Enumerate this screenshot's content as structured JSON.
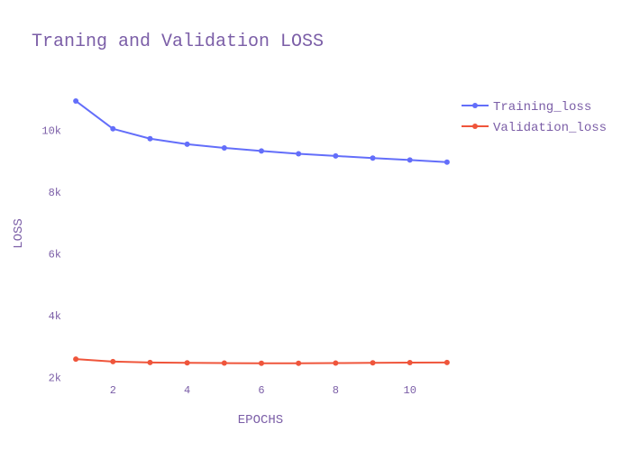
{
  "chart_data": {
    "type": "line",
    "title": "Traning and Validation LOSS",
    "xlabel": "EPOCHS",
    "ylabel": "LOSS",
    "x": [
      1,
      2,
      3,
      4,
      5,
      6,
      7,
      8,
      9,
      10,
      11
    ],
    "xlim": [
      0.9,
      11.1
    ],
    "ylim": [
      1950,
      11300
    ],
    "x_ticks": [
      2,
      4,
      6,
      8,
      10
    ],
    "y_ticks": [
      2000,
      4000,
      6000,
      8000,
      10000
    ],
    "y_tick_labels": [
      "2k",
      "4k",
      "6k",
      "8k",
      "10k"
    ],
    "legend_position": "top-right",
    "series": [
      {
        "name": "Training_loss",
        "color": "#636efa",
        "values": [
          10950,
          10050,
          9730,
          9550,
          9430,
          9330,
          9240,
          9170,
          9100,
          9040,
          8970
        ]
      },
      {
        "name": "Validation_loss",
        "color": "#ef553b",
        "values": [
          2590,
          2510,
          2480,
          2470,
          2460,
          2455,
          2455,
          2460,
          2470,
          2475,
          2480
        ]
      }
    ]
  }
}
